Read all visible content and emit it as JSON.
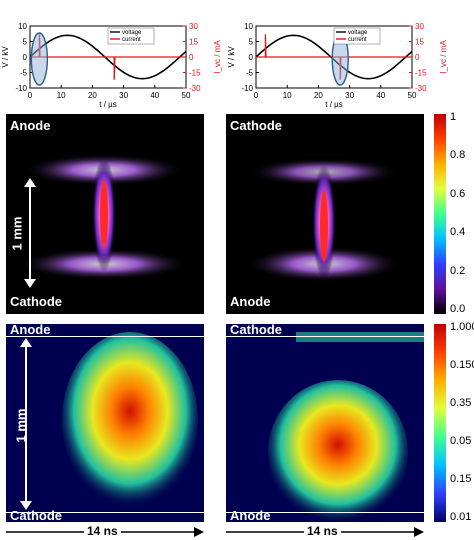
{
  "plots": [
    {
      "left_axis_label": "V / kV",
      "right_axis_label": "I_vc / mA",
      "xlabel": "t / µs",
      "xticks": [
        "0",
        "10",
        "20",
        "30",
        "40",
        "50"
      ],
      "left_ticks": [
        "10",
        "5",
        "0",
        "-5",
        "-10"
      ],
      "right_ticks": [
        "30",
        "15",
        "0",
        "-15",
        "-30"
      ],
      "legend": [
        "voltage",
        "current"
      ]
    },
    {
      "left_axis_label": "V / kV",
      "right_axis_label": "I_vc / mA",
      "xlabel": "t / µs",
      "xticks": [
        "0",
        "10",
        "20",
        "30",
        "40",
        "50"
      ],
      "left_ticks": [
        "10",
        "5",
        "0",
        "-5",
        "-10"
      ],
      "right_ticks": [
        "30",
        "15",
        "0",
        "-15",
        "-30"
      ],
      "legend": [
        "voltage",
        "current"
      ]
    }
  ],
  "chart_data": [
    {
      "type": "line",
      "xlabel": "t / µs",
      "ylabel": "V / kV",
      "xlim": [
        0,
        50
      ],
      "ylim": [
        -10,
        10
      ],
      "y2label": "I_vc / mA",
      "y2lim": [
        -30,
        30
      ],
      "series": [
        {
          "name": "voltage",
          "x": [
            0,
            5,
            10,
            15,
            20,
            25,
            30,
            35,
            40,
            45,
            50
          ],
          "values": [
            0,
            3.5,
            6,
            7,
            6,
            3.5,
            0,
            -3.5,
            -6,
            -7,
            -6
          ]
        },
        {
          "name": "current",
          "x": [
            0,
            3,
            3,
            3.2,
            25,
            27,
            27,
            27.2,
            50
          ],
          "values": [
            0,
            0,
            22,
            0,
            0,
            0,
            -22,
            0,
            0
          ]
        }
      ],
      "annotation": "circled current pulse near t = 3 µs"
    },
    {
      "type": "line",
      "xlabel": "t / µs",
      "ylabel": "V / kV",
      "xlim": [
        0,
        50
      ],
      "ylim": [
        -10,
        10
      ],
      "y2label": "I_vc / mA",
      "y2lim": [
        -30,
        30
      ],
      "series": [
        {
          "name": "voltage",
          "x": [
            0,
            5,
            10,
            15,
            20,
            25,
            30,
            35,
            40,
            45,
            50
          ],
          "values": [
            0,
            3.5,
            6,
            7,
            6,
            3.5,
            0,
            -3.5,
            -6,
            -7,
            -6
          ]
        },
        {
          "name": "current",
          "x": [
            0,
            3,
            3,
            3.2,
            25,
            27,
            27,
            27.2,
            50
          ],
          "values": [
            0,
            0,
            22,
            0,
            0,
            0,
            -22,
            0,
            0
          ]
        }
      ],
      "annotation": "circled current pulse near t = 27 µs"
    }
  ],
  "panels": {
    "row1_left": {
      "top": "Anode",
      "bottom": "Cathode",
      "scale": "1 mm"
    },
    "row1_right": {
      "top": "Cathode",
      "bottom": "Anode"
    },
    "row2_left": {
      "top": "Anode",
      "bottom": "Cathode",
      "scale": "1 mm",
      "time": "14 ns"
    },
    "row2_right": {
      "top": "Cathode",
      "bottom": "Anode",
      "time": "14 ns"
    }
  },
  "colorbars": {
    "top_ticks": [
      "1",
      "0.8",
      "0.6",
      "0.4",
      "0.2",
      "0.0"
    ],
    "bottom_ticks": [
      "1.000",
      "0.150",
      "0.35",
      "0.05",
      "0.15",
      "0.01"
    ]
  },
  "colors": {
    "voltage": "#000000",
    "current": "#e8141b",
    "circle_fill": "#8fb4d8",
    "circle_stroke": "#2e5f8f"
  }
}
